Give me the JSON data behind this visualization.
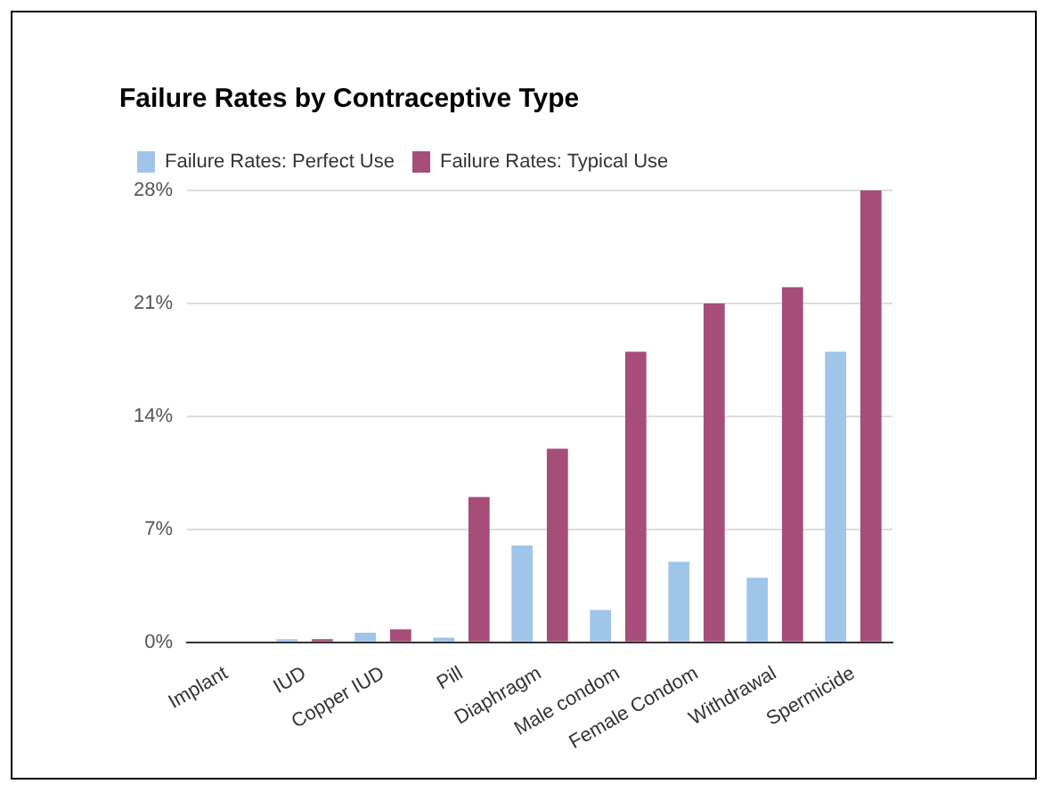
{
  "chart_data": {
    "type": "bar",
    "title": "Failure Rates by Contraceptive Type",
    "categories": [
      "Implant",
      "IUD",
      "Copper IUD",
      "Pill",
      "Diaphragm",
      "Male condom",
      "Female Condom",
      "Withdrawal",
      "Spermicide"
    ],
    "series": [
      {
        "name": "Failure Rates: Perfect Use",
        "color": "#9fc5e8",
        "values": [
          0,
          0.2,
          0.6,
          0.3,
          6,
          2,
          5,
          4,
          18
        ]
      },
      {
        "name": "Failure Rates: Typical Use",
        "color": "#a64d79",
        "values": [
          0,
          0.2,
          0.8,
          9,
          12,
          18,
          21,
          22,
          28
        ]
      }
    ],
    "ylim": [
      0,
      28
    ],
    "yticks": [
      {
        "value": 0,
        "label": "0%"
      },
      {
        "value": 7,
        "label": "7%"
      },
      {
        "value": 14,
        "label": "14%"
      },
      {
        "value": 21,
        "label": "21%"
      },
      {
        "value": 28,
        "label": "28%"
      }
    ],
    "grid": "y",
    "legend": "top"
  }
}
